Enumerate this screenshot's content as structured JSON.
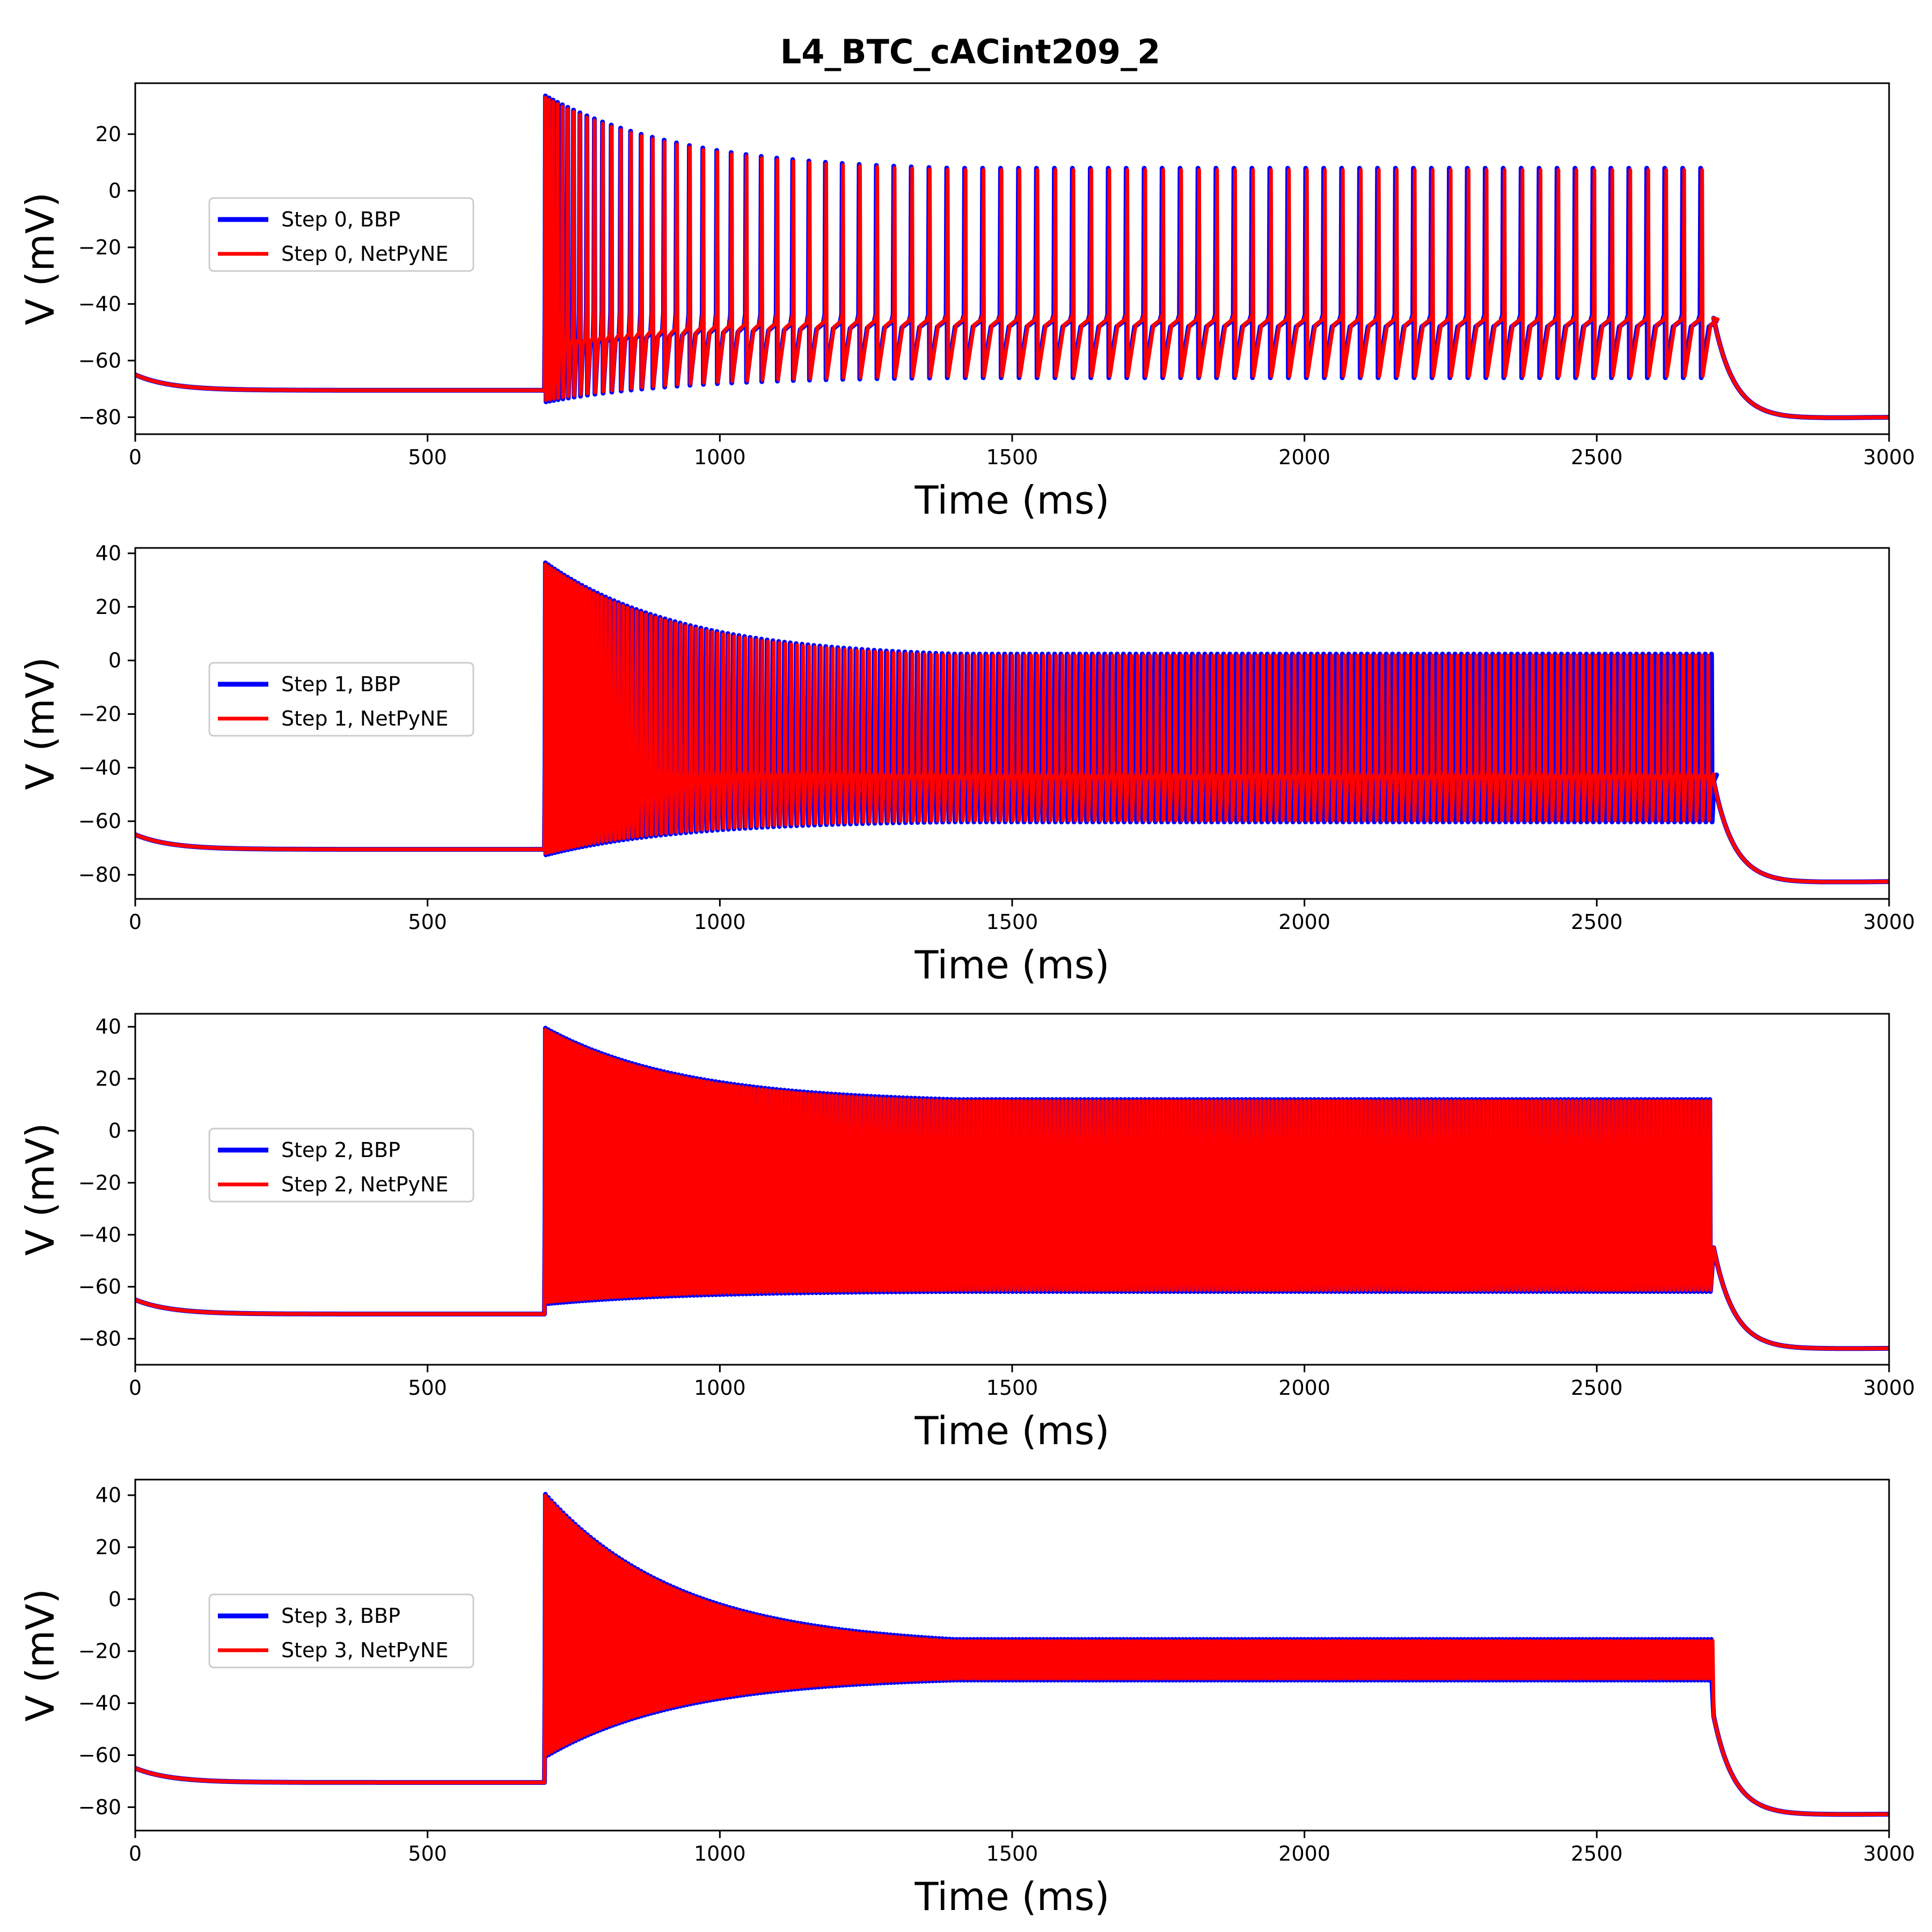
{
  "figure": {
    "title": "L4_BTC_cACint209_2"
  },
  "chart_data": [
    {
      "type": "line",
      "title": "",
      "xlabel": "Time (ms)",
      "ylabel": "V (mV)",
      "xlim": [
        0,
        3000
      ],
      "ylim": [
        -86,
        38
      ],
      "xticks": [
        0,
        500,
        1000,
        1500,
        2000,
        2500,
        3000
      ],
      "yticks": [
        -80,
        -60,
        -40,
        -20,
        0,
        20
      ],
      "grid": false,
      "legend_position": "center-left",
      "stimulus": {
        "onset_ms": 700,
        "offset_ms": 2700
      },
      "rest_mv": -70.5,
      "post_mv": -80.5,
      "final_mv": -79,
      "trough_early_mv": -74,
      "trough_late_mv": -65,
      "peak_first_mv": 33,
      "peak_late_mv": 6,
      "isi_first_ms": 6,
      "isi_late_ms": 32,
      "series": [
        {
          "name": "Step 0, BBP",
          "color": "#0000ff"
        },
        {
          "name": "Step 0, NetPyNE",
          "color": "#ff0000"
        }
      ]
    },
    {
      "type": "line",
      "title": "",
      "xlabel": "Time (ms)",
      "ylabel": "V (mV)",
      "xlim": [
        0,
        3000
      ],
      "ylim": [
        -89,
        42
      ],
      "xticks": [
        0,
        500,
        1000,
        1500,
        2000,
        2500,
        3000
      ],
      "yticks": [
        -80,
        -60,
        -40,
        -20,
        0,
        20,
        40
      ],
      "grid": false,
      "legend_position": "center-left",
      "stimulus": {
        "onset_ms": 700,
        "offset_ms": 2700
      },
      "rest_mv": -70.5,
      "post_mv": -83,
      "final_mv": -81.5,
      "trough_early_mv": -72,
      "trough_late_mv": -59,
      "peak_first_mv": 36,
      "peak_late_mv": 0,
      "isi_first_ms": 5,
      "isi_late_ms": 11,
      "series": [
        {
          "name": "Step 1, BBP",
          "color": "#0000ff"
        },
        {
          "name": "Step 1, NetPyNE",
          "color": "#ff0000"
        }
      ]
    },
    {
      "type": "line",
      "title": "",
      "xlabel": "Time (ms)",
      "ylabel": "V (mV)",
      "xlim": [
        0,
        3000
      ],
      "ylim": [
        -90,
        45
      ],
      "xticks": [
        0,
        500,
        1000,
        1500,
        2000,
        2500,
        3000
      ],
      "yticks": [
        -80,
        -60,
        -40,
        -20,
        0,
        20,
        40
      ],
      "grid": false,
      "legend_position": "center-left",
      "stimulus": {
        "onset_ms": 700,
        "offset_ms": 2700
      },
      "rest_mv": -70.5,
      "post_mv": -84,
      "final_mv": -83,
      "trough_early_mv": -66,
      "trough_late_mv": -61,
      "peak_first_mv": 39,
      "peak_late_mv": 10,
      "isi_first_ms": 5,
      "isi_late_ms": 7,
      "series": [
        {
          "name": "Step 2, BBP",
          "color": "#0000ff"
        },
        {
          "name": "Step 2, NetPyNE",
          "color": "#ff0000"
        }
      ]
    },
    {
      "type": "line",
      "title": "",
      "xlabel": "Time (ms)",
      "ylabel": "V (mV)",
      "xlim": [
        0,
        3000
      ],
      "ylim": [
        -89,
        46
      ],
      "xticks": [
        0,
        500,
        1000,
        1500,
        2000,
        2500,
        3000
      ],
      "yticks": [
        -80,
        -60,
        -40,
        -20,
        0,
        20,
        40
      ],
      "grid": false,
      "legend_position": "center-left",
      "stimulus": {
        "onset_ms": 700,
        "offset_ms": 2700
      },
      "rest_mv": -70.5,
      "post_mv": -83,
      "final_mv": -82,
      "trough_early_mv": -60,
      "trough_late_mv": -29,
      "peak_first_mv": 40,
      "peak_late_mv": -19,
      "isi_first_ms": 5,
      "isi_late_ms": 6,
      "series": [
        {
          "name": "Step 3, BBP",
          "color": "#0000ff"
        },
        {
          "name": "Step 3, NetPyNE",
          "color": "#ff0000"
        }
      ]
    }
  ]
}
